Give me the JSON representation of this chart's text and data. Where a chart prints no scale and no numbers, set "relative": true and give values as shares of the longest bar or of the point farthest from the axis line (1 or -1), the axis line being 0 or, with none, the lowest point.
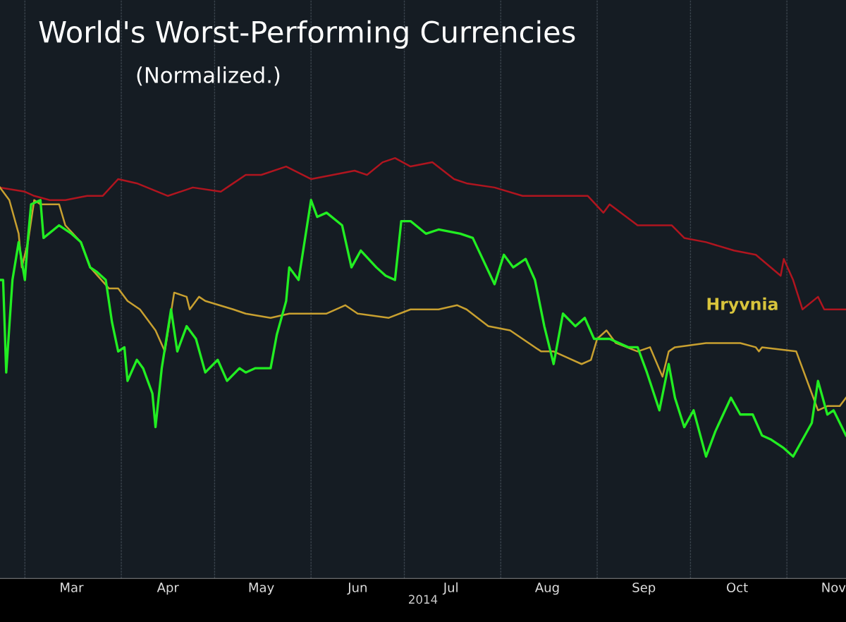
{
  "chart_data": {
    "type": "line",
    "title": "World's Worst-Performing Currencies",
    "subtitle": "(Normalized.)",
    "xlabel": "2014",
    "relative": true,
    "grid": "x",
    "legend": false,
    "marker": "none",
    "line_style": "solid",
    "xlim": [
      "2014-02-21",
      "2014-11-20"
    ],
    "xticks": [
      {
        "value": "2014-03-01",
        "label": null
      },
      {
        "value": "2014-03-16",
        "label": "Mar"
      },
      {
        "value": "2014-04-01",
        "label": null
      },
      {
        "value": "2014-04-16",
        "label": "Apr"
      },
      {
        "value": "2014-05-01",
        "label": null
      },
      {
        "value": "2014-05-16",
        "label": "May"
      },
      {
        "value": "2014-06-01",
        "label": null
      },
      {
        "value": "2014-06-16",
        "label": "Jun"
      },
      {
        "value": "2014-07-01",
        "label": null
      },
      {
        "value": "2014-07-16",
        "label": "Jul"
      },
      {
        "value": "2014-08-01",
        "label": null
      },
      {
        "value": "2014-08-16",
        "label": "Aug"
      },
      {
        "value": "2014-09-01",
        "label": null
      },
      {
        "value": "2014-09-16",
        "label": "Sep"
      },
      {
        "value": "2014-10-01",
        "label": null
      },
      {
        "value": "2014-10-16",
        "label": "Oct"
      },
      {
        "value": "2014-11-01",
        "label": null
      },
      {
        "value": "2014-11-16",
        "label": "Nov"
      }
    ],
    "series": [
      {
        "color": "#b0151f",
        "x": [
          "2014-02-21",
          "2014-03-01",
          "2014-03-04",
          "2014-03-09",
          "2014-03-14",
          "2014-03-21",
          "2014-03-26",
          "2014-03-31",
          "2014-04-06",
          "2014-04-16",
          "2014-04-24",
          "2014-05-03",
          "2014-05-07",
          "2014-05-11",
          "2014-05-16",
          "2014-05-24",
          "2014-06-01",
          "2014-06-08",
          "2014-06-15",
          "2014-06-19",
          "2014-06-24",
          "2014-06-28",
          "2014-07-03",
          "2014-07-10",
          "2014-07-17",
          "2014-07-21",
          "2014-07-30",
          "2014-08-08",
          "2014-08-20",
          "2014-08-29",
          "2014-09-03",
          "2014-09-05",
          "2014-09-14",
          "2014-09-25",
          "2014-09-29",
          "2014-10-06",
          "2014-10-15",
          "2014-10-22",
          "2014-10-30",
          "2014-10-31",
          "2014-11-03",
          "2014-11-06",
          "2014-11-11",
          "2014-11-13",
          "2014-11-20"
        ],
        "values": [
          0.93,
          0.92,
          0.91,
          0.9,
          0.9,
          0.91,
          0.91,
          0.95,
          0.94,
          0.91,
          0.93,
          0.92,
          0.94,
          0.96,
          0.96,
          0.98,
          0.95,
          0.96,
          0.97,
          0.96,
          0.99,
          1.0,
          0.98,
          0.99,
          0.95,
          0.94,
          0.93,
          0.91,
          0.91,
          0.91,
          0.87,
          0.89,
          0.84,
          0.84,
          0.81,
          0.8,
          0.78,
          0.77,
          0.72,
          0.76,
          0.71,
          0.64,
          0.67,
          0.64,
          0.64
        ]
      },
      {
        "name": "Hryvnia",
        "color": "#c8a030",
        "x": [
          "2014-02-21",
          "2014-02-24",
          "2014-02-27",
          "2014-02-28",
          "2014-03-02",
          "2014-03-04",
          "2014-03-06",
          "2014-03-12",
          "2014-03-14",
          "2014-03-19",
          "2014-03-22",
          "2014-03-28",
          "2014-03-31",
          "2014-04-03",
          "2014-04-07",
          "2014-04-12",
          "2014-04-15",
          "2014-04-18",
          "2014-04-22",
          "2014-04-23",
          "2014-04-26",
          "2014-04-28",
          "2014-05-07",
          "2014-05-11",
          "2014-05-19",
          "2014-05-25",
          "2014-06-01",
          "2014-06-06",
          "2014-06-12",
          "2014-06-16",
          "2014-06-26",
          "2014-07-03",
          "2014-07-12",
          "2014-07-18",
          "2014-07-21",
          "2014-07-28",
          "2014-08-04",
          "2014-08-14",
          "2014-08-18",
          "2014-08-27",
          "2014-08-30",
          "2014-09-01",
          "2014-09-04",
          "2014-09-07",
          "2014-09-14",
          "2014-09-18",
          "2014-09-22",
          "2014-09-24",
          "2014-09-26",
          "2014-10-06",
          "2014-10-17",
          "2014-10-22",
          "2014-10-23",
          "2014-10-24",
          "2014-11-04",
          "2014-11-09",
          "2014-11-11",
          "2014-11-14",
          "2014-11-18",
          "2014-11-20"
        ],
        "values": [
          0.93,
          0.9,
          0.82,
          0.74,
          0.8,
          0.9,
          0.89,
          0.89,
          0.84,
          0.8,
          0.74,
          0.69,
          0.69,
          0.66,
          0.64,
          0.59,
          0.54,
          0.68,
          0.67,
          0.64,
          0.67,
          0.66,
          0.64,
          0.63,
          0.62,
          0.63,
          0.63,
          0.63,
          0.65,
          0.63,
          0.62,
          0.64,
          0.64,
          0.65,
          0.64,
          0.6,
          0.59,
          0.54,
          0.54,
          0.51,
          0.52,
          0.57,
          0.59,
          0.56,
          0.54,
          0.55,
          0.48,
          0.54,
          0.55,
          0.56,
          0.56,
          0.55,
          0.54,
          0.55,
          0.54,
          0.44,
          0.4,
          0.41,
          0.41,
          0.43
        ]
      },
      {
        "color": "#22ee22",
        "x": [
          "2014-02-21",
          "2014-02-22",
          "2014-02-23",
          "2014-02-25",
          "2014-02-27",
          "2014-03-01",
          "2014-03-02",
          "2014-03-03",
          "2014-03-06",
          "2014-03-07",
          "2014-03-12",
          "2014-03-16",
          "2014-03-19",
          "2014-03-22",
          "2014-03-24",
          "2014-03-27",
          "2014-03-29",
          "2014-03-31",
          "2014-04-02",
          "2014-04-03",
          "2014-04-06",
          "2014-04-08",
          "2014-04-11",
          "2014-04-12",
          "2014-04-14",
          "2014-04-17",
          "2014-04-19",
          "2014-04-22",
          "2014-04-25",
          "2014-04-28",
          "2014-05-02",
          "2014-05-05",
          "2014-05-09",
          "2014-05-11",
          "2014-05-14",
          "2014-05-19",
          "2014-05-21",
          "2014-05-24",
          "2014-05-25",
          "2014-05-28",
          "2014-06-01",
          "2014-06-03",
          "2014-06-06",
          "2014-06-11",
          "2014-06-14",
          "2014-06-17",
          "2014-06-22",
          "2014-06-25",
          "2014-06-28",
          "2014-06-30",
          "2014-07-03",
          "2014-07-08",
          "2014-07-12",
          "2014-07-19",
          "2014-07-23",
          "2014-07-30",
          "2014-08-02",
          "2014-08-05",
          "2014-08-09",
          "2014-08-12",
          "2014-08-15",
          "2014-08-18",
          "2014-08-21",
          "2014-08-25",
          "2014-08-28",
          "2014-08-31",
          "2014-09-05",
          "2014-09-11",
          "2014-09-14",
          "2014-09-17",
          "2014-09-21",
          "2014-09-24",
          "2014-09-26",
          "2014-09-29",
          "2014-10-02",
          "2014-10-06",
          "2014-10-09",
          "2014-10-14",
          "2014-10-17",
          "2014-10-21",
          "2014-10-24",
          "2014-10-27",
          "2014-10-31",
          "2014-11-03",
          "2014-11-06",
          "2014-11-09",
          "2014-11-11",
          "2014-11-14",
          "2014-11-16",
          "2014-11-20"
        ],
        "values": [
          0.71,
          0.71,
          0.49,
          0.71,
          0.8,
          0.71,
          0.81,
          0.89,
          0.9,
          0.81,
          0.84,
          0.82,
          0.8,
          0.74,
          0.73,
          0.71,
          0.61,
          0.54,
          0.55,
          0.47,
          0.52,
          0.5,
          0.44,
          0.36,
          0.5,
          0.64,
          0.54,
          0.6,
          0.57,
          0.49,
          0.52,
          0.47,
          0.5,
          0.49,
          0.5,
          0.5,
          0.58,
          0.66,
          0.74,
          0.71,
          0.9,
          0.86,
          0.87,
          0.84,
          0.74,
          0.78,
          0.74,
          0.72,
          0.71,
          0.85,
          0.85,
          0.82,
          0.83,
          0.82,
          0.81,
          0.7,
          0.77,
          0.74,
          0.76,
          0.71,
          0.6,
          0.51,
          0.63,
          0.6,
          0.62,
          0.57,
          0.57,
          0.55,
          0.55,
          0.49,
          0.4,
          0.51,
          0.43,
          0.36,
          0.4,
          0.29,
          0.35,
          0.43,
          0.39,
          0.39,
          0.34,
          0.33,
          0.31,
          0.29,
          0.33,
          0.37,
          0.47,
          0.39,
          0.4,
          0.34
        ]
      }
    ]
  }
}
